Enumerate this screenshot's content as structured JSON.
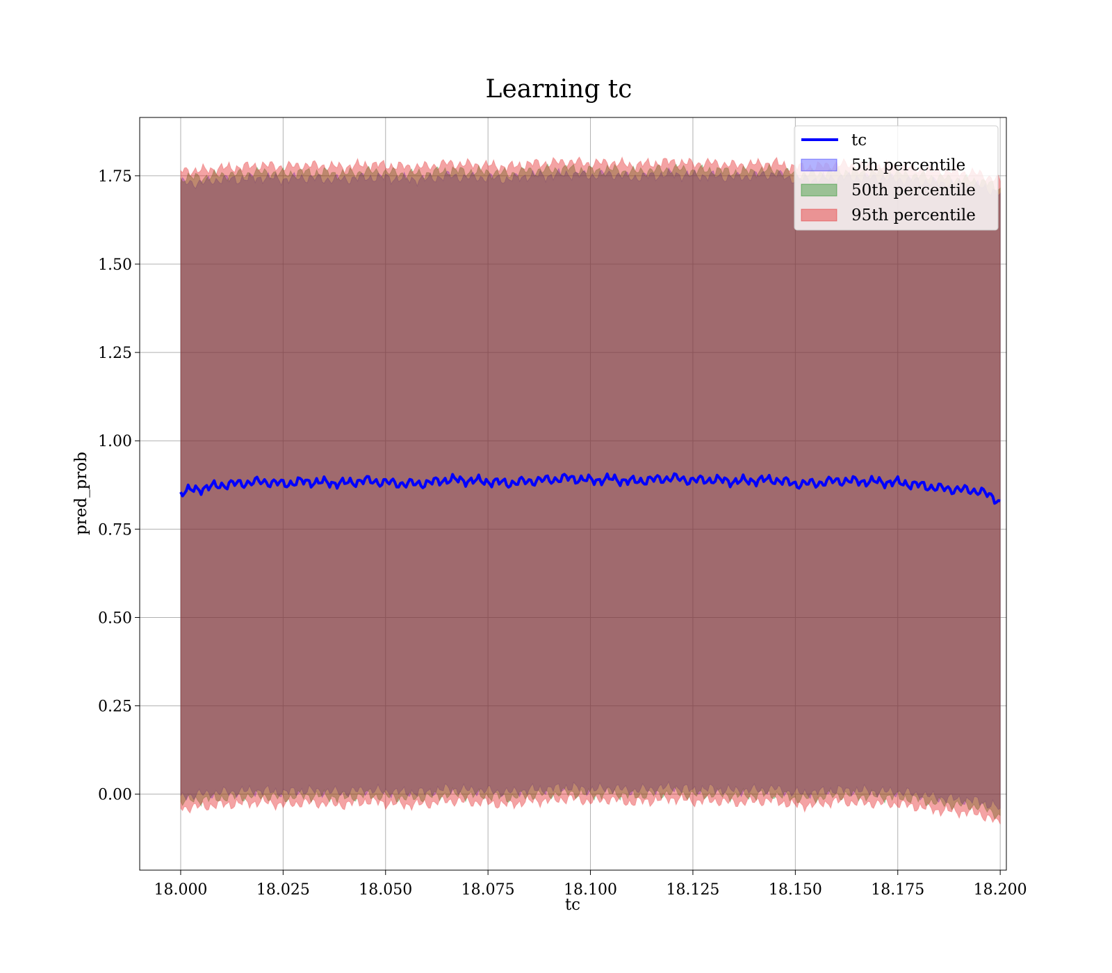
{
  "chart_data": {
    "type": "area",
    "title": "Learning tc",
    "xlabel": "tc",
    "ylabel": "pred_prob",
    "xlim": [
      17.99,
      18.2015
    ],
    "ylim": [
      -0.215,
      1.915
    ],
    "xticks": [
      18.0,
      18.025,
      18.05,
      18.075,
      18.1,
      18.125,
      18.15,
      18.175,
      18.2
    ],
    "xtick_labels": [
      "18.000",
      "18.025",
      "18.050",
      "18.075",
      "18.100",
      "18.125",
      "18.150",
      "18.175",
      "18.200"
    ],
    "yticks": [
      0.0,
      0.25,
      0.5,
      0.75,
      1.0,
      1.25,
      1.5,
      1.75
    ],
    "ytick_labels": [
      "0.00",
      "0.25",
      "0.50",
      "0.75",
      "1.00",
      "1.25",
      "1.50",
      "1.75"
    ],
    "grid": true,
    "legend_position": "top-right",
    "x": [
      18.0,
      18.005,
      18.01,
      18.015,
      18.02,
      18.025,
      18.03,
      18.035,
      18.04,
      18.045,
      18.05,
      18.055,
      18.06,
      18.065,
      18.07,
      18.075,
      18.08,
      18.085,
      18.09,
      18.095,
      18.1,
      18.105,
      18.11,
      18.115,
      18.12,
      18.125,
      18.13,
      18.135,
      18.14,
      18.145,
      18.15,
      18.155,
      18.16,
      18.165,
      18.17,
      18.175,
      18.18,
      18.185,
      18.19,
      18.195,
      18.2
    ],
    "series": [
      {
        "name": "tc",
        "kind": "line",
        "color": "#0000ff",
        "values": [
          0.855,
          0.865,
          0.875,
          0.88,
          0.885,
          0.878,
          0.885,
          0.882,
          0.88,
          0.888,
          0.882,
          0.878,
          0.88,
          0.89,
          0.888,
          0.885,
          0.88,
          0.886,
          0.89,
          0.895,
          0.888,
          0.892,
          0.885,
          0.89,
          0.895,
          0.888,
          0.89,
          0.885,
          0.888,
          0.89,
          0.878,
          0.88,
          0.887,
          0.886,
          0.884,
          0.882,
          0.875,
          0.866,
          0.862,
          0.858,
          0.83
        ]
      },
      {
        "name": "5th percentile",
        "kind": "band",
        "color": "#0000ff",
        "lower": [
          -0.005,
          0.0,
          0.005,
          0.008,
          0.01,
          0.005,
          0.01,
          0.008,
          0.005,
          0.012,
          0.008,
          0.005,
          0.006,
          0.015,
          0.012,
          0.01,
          0.005,
          0.012,
          0.015,
          0.02,
          0.012,
          0.018,
          0.01,
          0.015,
          0.02,
          0.012,
          0.015,
          0.01,
          0.012,
          0.015,
          0.003,
          0.005,
          0.012,
          0.01,
          0.008,
          0.006,
          0.0,
          -0.01,
          -0.015,
          -0.02,
          -0.04
        ],
        "upper": [
          1.73,
          1.73,
          1.74,
          1.74,
          1.745,
          1.74,
          1.745,
          1.74,
          1.74,
          1.745,
          1.745,
          1.74,
          1.74,
          1.75,
          1.745,
          1.745,
          1.74,
          1.75,
          1.75,
          1.755,
          1.75,
          1.755,
          1.745,
          1.75,
          1.755,
          1.75,
          1.75,
          1.745,
          1.75,
          1.755,
          1.74,
          1.74,
          1.745,
          1.745,
          1.745,
          1.74,
          1.735,
          1.73,
          1.725,
          1.72,
          1.7
        ]
      },
      {
        "name": "50th percentile",
        "kind": "band",
        "color": "#008000",
        "lower": [
          -0.02,
          -0.015,
          -0.01,
          -0.006,
          -0.004,
          -0.01,
          -0.004,
          -0.006,
          -0.01,
          -0.002,
          -0.006,
          -0.01,
          -0.008,
          0.0,
          -0.002,
          -0.004,
          -0.01,
          -0.002,
          0.0,
          0.005,
          -0.002,
          0.003,
          -0.004,
          0.0,
          0.005,
          -0.002,
          0.0,
          -0.004,
          -0.002,
          0.0,
          -0.012,
          -0.01,
          -0.002,
          -0.004,
          -0.006,
          -0.008,
          -0.015,
          -0.025,
          -0.03,
          -0.035,
          -0.06
        ],
        "upper": [
          1.745,
          1.745,
          1.752,
          1.755,
          1.76,
          1.755,
          1.76,
          1.758,
          1.755,
          1.762,
          1.76,
          1.755,
          1.756,
          1.765,
          1.762,
          1.76,
          1.755,
          1.764,
          1.766,
          1.77,
          1.764,
          1.768,
          1.76,
          1.765,
          1.77,
          1.764,
          1.766,
          1.76,
          1.763,
          1.766,
          1.754,
          1.755,
          1.762,
          1.76,
          1.758,
          1.756,
          1.75,
          1.744,
          1.74,
          1.735,
          1.715
        ]
      },
      {
        "name": "95th percentile",
        "kind": "band",
        "color": "#e31a1c",
        "lower": [
          -0.04,
          -0.035,
          -0.03,
          -0.026,
          -0.022,
          -0.03,
          -0.024,
          -0.026,
          -0.03,
          -0.02,
          -0.025,
          -0.03,
          -0.028,
          -0.018,
          -0.022,
          -0.024,
          -0.03,
          -0.02,
          -0.018,
          -0.012,
          -0.02,
          -0.014,
          -0.024,
          -0.018,
          -0.012,
          -0.02,
          -0.018,
          -0.024,
          -0.02,
          -0.018,
          -0.032,
          -0.03,
          -0.02,
          -0.024,
          -0.026,
          -0.028,
          -0.036,
          -0.046,
          -0.05,
          -0.055,
          -0.085
        ],
        "upper": [
          1.765,
          1.765,
          1.772,
          1.775,
          1.78,
          1.775,
          1.78,
          1.778,
          1.775,
          1.782,
          1.78,
          1.775,
          1.776,
          1.785,
          1.782,
          1.78,
          1.775,
          1.784,
          1.786,
          1.79,
          1.784,
          1.788,
          1.78,
          1.785,
          1.79,
          1.784,
          1.786,
          1.78,
          1.783,
          1.786,
          1.774,
          1.775,
          1.782,
          1.78,
          1.778,
          1.776,
          1.77,
          1.764,
          1.76,
          1.755,
          1.735
        ]
      }
    ]
  }
}
